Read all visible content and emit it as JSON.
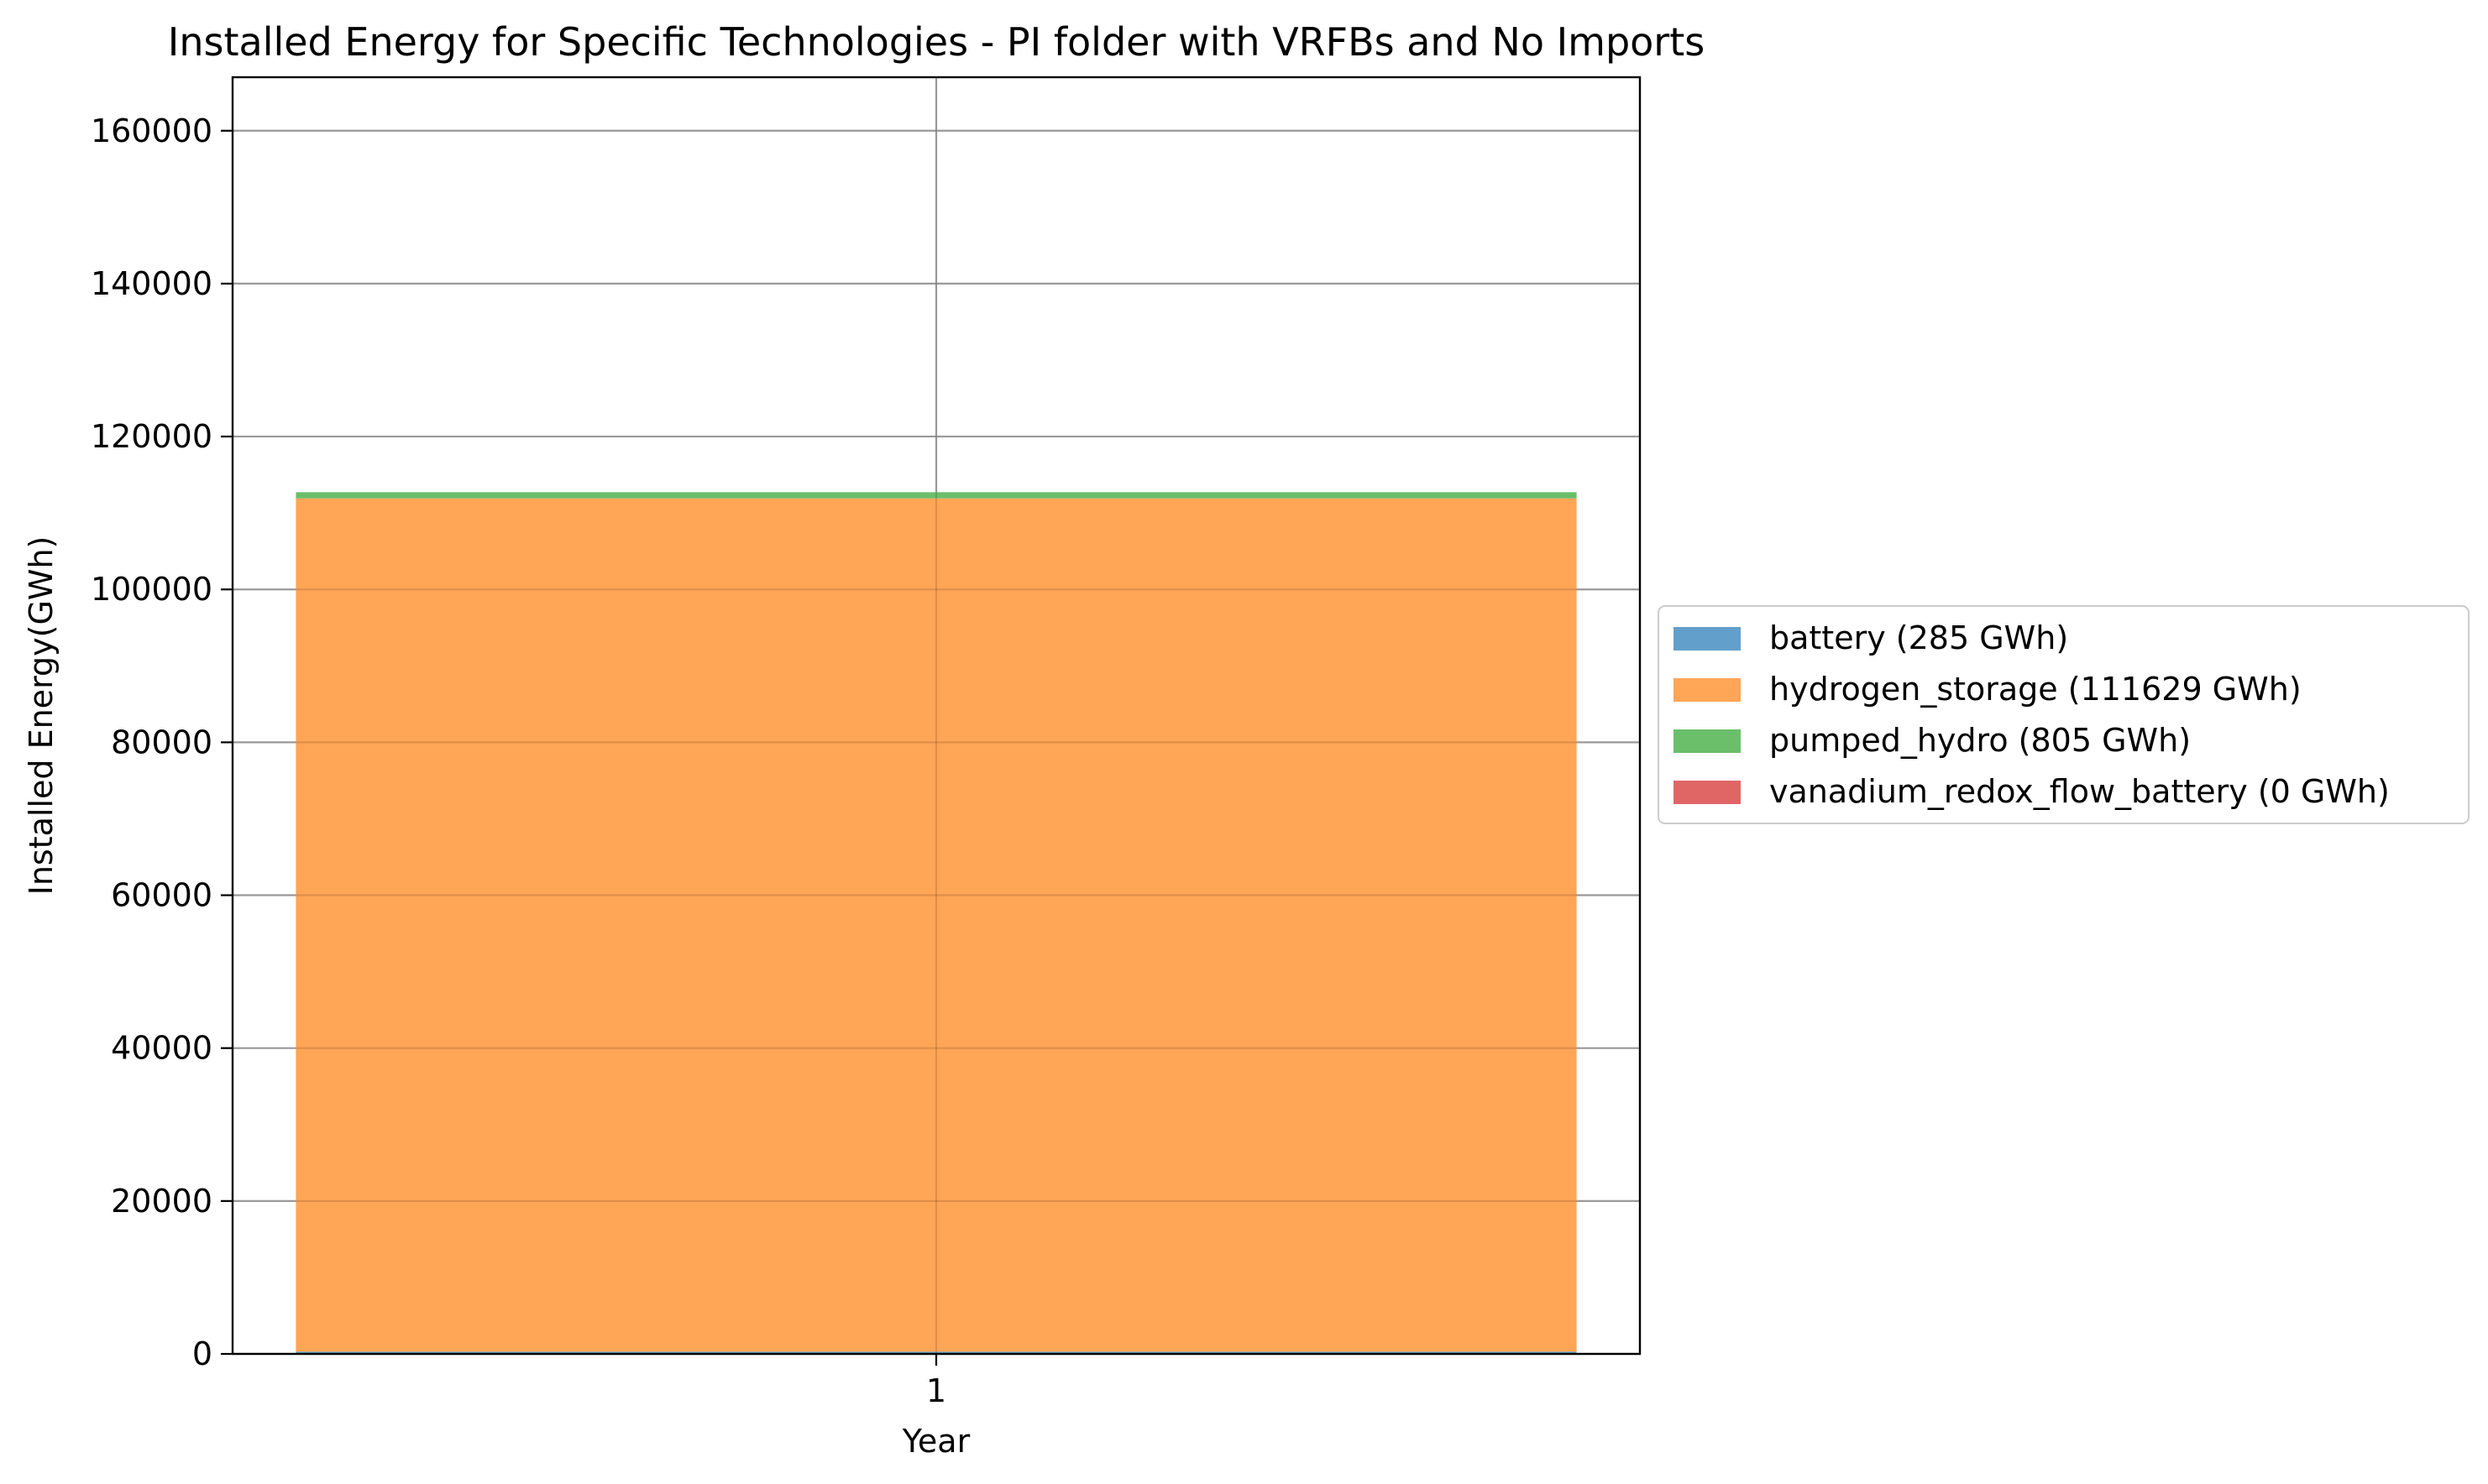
{
  "chart_data": {
    "type": "bar",
    "stacked": true,
    "title": "Installed Energy for Specific Technologies - PI folder with VRFBs and No Imports",
    "xlabel": "Year",
    "ylabel": "Installed Energy(GWh)",
    "categories": [
      "1"
    ],
    "ylim": [
      0,
      167000
    ],
    "yticks": [
      0,
      20000,
      40000,
      60000,
      80000,
      100000,
      120000,
      140000,
      160000
    ],
    "grid": true,
    "legend_position": "right-outside",
    "series": [
      {
        "name": "battery (285 GWh)",
        "values": [
          285
        ],
        "color": "#629fca"
      },
      {
        "name": "hydrogen_storage (111629 GWh)",
        "values": [
          111629
        ],
        "color": "#ffa556"
      },
      {
        "name": "pumped_hydro (805 GWh)",
        "values": [
          805
        ],
        "color": "#6bbf6b"
      },
      {
        "name": "vanadium_redox_flow_battery (0 GWh)",
        "values": [
          0
        ],
        "color": "#e06666"
      }
    ]
  }
}
